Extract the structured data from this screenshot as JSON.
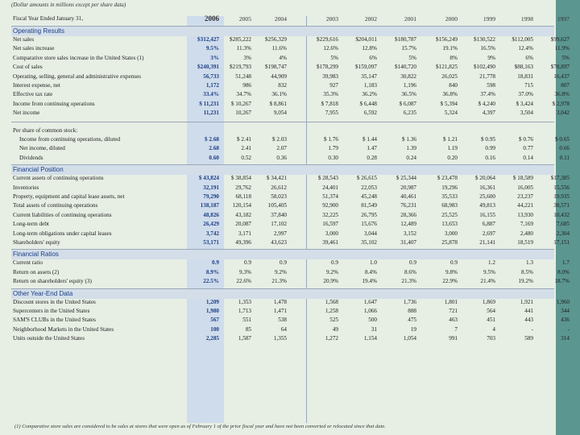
{
  "note": "(Dollar amounts in millions except per share data)",
  "footnote": "(1) Comparative store sales are considered to be sales at stores that were open as of February 1 of the prior fiscal year and have not been converted or relocated since that date.",
  "header": {
    "label": "Fiscal Year Ended January 31,",
    "years": [
      "2006",
      "2005",
      "2004",
      "2003",
      "2002",
      "2001",
      "2000",
      "1999",
      "1998",
      "1997"
    ]
  },
  "sections": [
    {
      "title": "Operating Results",
      "rows": [
        {
          "label": "Net sales",
          "values": [
            "$312,427",
            "$285,222",
            "$256,329",
            "$229,616",
            "$204,011",
            "$180,787",
            "$156,249",
            "$130,522",
            "$112,005",
            "$99,627"
          ]
        },
        {
          "label": "Net sales increase",
          "values": [
            "9.5%",
            "11.3%",
            "11.6%",
            "12.6%",
            "12.8%",
            "15.7%",
            "19.1%",
            "16.5%",
            "12.4%",
            "11.9%"
          ]
        },
        {
          "label": "Comparative store sales increase in the United States (1)",
          "values": [
            "3%",
            "3%",
            "4%",
            "5%",
            "6%",
            "5%",
            "8%",
            "9%",
            "6%",
            "5%"
          ]
        },
        {
          "label": "Cost of sales",
          "values": [
            "$240,391",
            "$219,793",
            "$198,747",
            "$178,299",
            "$159,097",
            "$140,720",
            "$121,825",
            "$102,490",
            "$88,163",
            "$78,897"
          ]
        },
        {
          "label": "Operating, selling, general and administrative expenses",
          "values": [
            "56,733",
            "51,248",
            "44,909",
            "39,983",
            "35,147",
            "30,822",
            "26,025",
            "21,778",
            "18,831",
            "16,437"
          ]
        },
        {
          "label": "Interest expense, net",
          "values": [
            "1,172",
            "986",
            "832",
            "927",
            "1,183",
            "1,196",
            "840",
            "598",
            "715",
            "807"
          ]
        },
        {
          "label": "Effective tax rate",
          "values": [
            "33.4%",
            "34.7%",
            "36.1%",
            "35.3%",
            "36.2%",
            "36.5%",
            "36.8%",
            "37.4%",
            "37.0%",
            "36.8%"
          ]
        },
        {
          "label": "Income from continuing operations",
          "values": [
            "$ 11,231",
            "$ 10,267",
            "$ 8,861",
            "$ 7,818",
            "$ 6,448",
            "$ 6,087",
            "$ 5,394",
            "$ 4,240",
            "$ 3,424",
            "$ 2,978"
          ]
        },
        {
          "label": "Net income",
          "values": [
            "11,231",
            "10,267",
            "9,054",
            "7,955",
            "6,592",
            "6,235",
            "5,324",
            "4,397",
            "3,504",
            "3,042"
          ]
        }
      ]
    },
    {
      "title": "",
      "rows": [
        {
          "label": "Per share of common stock:",
          "values": [
            "",
            "",
            "",
            "",
            "",
            "",
            "",
            "",
            "",
            ""
          ]
        },
        {
          "label": "Income from continuing operations, diluted",
          "indent": true,
          "values": [
            "$ 2.68",
            "$ 2.41",
            "$ 2.03",
            "$ 1.76",
            "$ 1.44",
            "$ 1.36",
            "$ 1.21",
            "$ 0.95",
            "$ 0.76",
            "$ 0.65"
          ]
        },
        {
          "label": "Net income, diluted",
          "indent": true,
          "values": [
            "2.68",
            "2.41",
            "2.07",
            "1.79",
            "1.47",
            "1.39",
            "1.19",
            "0.99",
            "0.77",
            "0.66"
          ]
        },
        {
          "label": "Dividends",
          "indent": true,
          "values": [
            "0.60",
            "0.52",
            "0.36",
            "0.30",
            "0.28",
            "0.24",
            "0.20",
            "0.16",
            "0.14",
            "0.11"
          ]
        }
      ]
    },
    {
      "title": "Financial Position",
      "rows": [
        {
          "label": "Current assets of continuing operations",
          "values": [
            "$ 43,824",
            "$ 38,854",
            "$ 34,421",
            "$ 28,543",
            "$ 26,615",
            "$ 25,344",
            "$ 23,478",
            "$ 20,064",
            "$ 18,589",
            "$17,385"
          ]
        },
        {
          "label": "Inventories",
          "values": [
            "32,191",
            "29,762",
            "26,612",
            "24,401",
            "22,053",
            "20,987",
            "19,296",
            "16,361",
            "16,005",
            "15,556"
          ]
        },
        {
          "label": "Property, equipment and capital lease assets, net",
          "values": [
            "79,290",
            "68,118",
            "58,023",
            "51,374",
            "45,248",
            "40,461",
            "35,533",
            "25,600",
            "23,237",
            "19,935"
          ]
        },
        {
          "label": "Total assets of continuing operations",
          "values": [
            "138,187",
            "120,154",
            "105,405",
            "92,900",
            "81,549",
            "76,231",
            "68,983",
            "49,813",
            "44,221",
            "38,571"
          ]
        },
        {
          "label": "Current liabilities of continuing operations",
          "values": [
            "48,826",
            "43,182",
            "37,840",
            "32,225",
            "26,795",
            "28,366",
            "25,525",
            "16,155",
            "13,930",
            "10,432"
          ]
        },
        {
          "label": "Long-term debt",
          "values": [
            "26,429",
            "20,087",
            "17,102",
            "16,597",
            "15,676",
            "12,489",
            "13,653",
            "6,887",
            "7,169",
            "7,685"
          ]
        },
        {
          "label": "Long-term obligations under capital leases",
          "values": [
            "3,742",
            "3,171",
            "2,997",
            "3,000",
            "3,044",
            "3,152",
            "3,000",
            "2,697",
            "2,480",
            "2,304"
          ]
        },
        {
          "label": "Shareholders' equity",
          "values": [
            "53,171",
            "49,396",
            "43,623",
            "39,461",
            "35,102",
            "31,407",
            "25,878",
            "21,141",
            "18,519",
            "17,151"
          ]
        }
      ]
    },
    {
      "title": "Financial Ratios",
      "rows": [
        {
          "label": "Current ratio",
          "values": [
            "0.9",
            "0.9",
            "0.9",
            "0.9",
            "1.0",
            "0.9",
            "0.9",
            "1.2",
            "1.3",
            "1.7"
          ]
        },
        {
          "label": "Return on assets (2)",
          "values": [
            "8.9%",
            "9.3%",
            "9.2%",
            "9.2%",
            "8.4%",
            "8.6%",
            "9.8%",
            "9.5%",
            "8.5%",
            "8.0%"
          ]
        },
        {
          "label": "Return on shareholders' equity (3)",
          "values": [
            "22.5%",
            "22.6%",
            "21.3%",
            "20.9%",
            "19.4%",
            "21.3%",
            "22.9%",
            "21.4%",
            "19.2%",
            "18.7%"
          ]
        }
      ]
    },
    {
      "title": "Other Year-End Data",
      "rows": [
        {
          "label": "Discount stores in the United States",
          "values": [
            "1,209",
            "1,353",
            "1,478",
            "1,568",
            "1,647",
            "1,736",
            "1,801",
            "1,869",
            "1,921",
            "1,960"
          ]
        },
        {
          "label": "Supercenters in the United States",
          "values": [
            "1,980",
            "1,713",
            "1,471",
            "1,258",
            "1,066",
            "888",
            "721",
            "564",
            "441",
            "344"
          ]
        },
        {
          "label": "SAM'S CLUBs in the United States",
          "values": [
            "567",
            "551",
            "538",
            "525",
            "500",
            "475",
            "463",
            "451",
            "443",
            "436"
          ]
        },
        {
          "label": "Neighborhood Markets in the United States",
          "values": [
            "100",
            "85",
            "64",
            "49",
            "31",
            "19",
            "7",
            "4",
            "-",
            "-"
          ]
        },
        {
          "label": "Units outside the United States",
          "values": [
            "2,285",
            "1,587",
            "1,355",
            "1,272",
            "1,154",
            "1,054",
            "991",
            "703",
            "589",
            "314"
          ]
        }
      ]
    }
  ]
}
